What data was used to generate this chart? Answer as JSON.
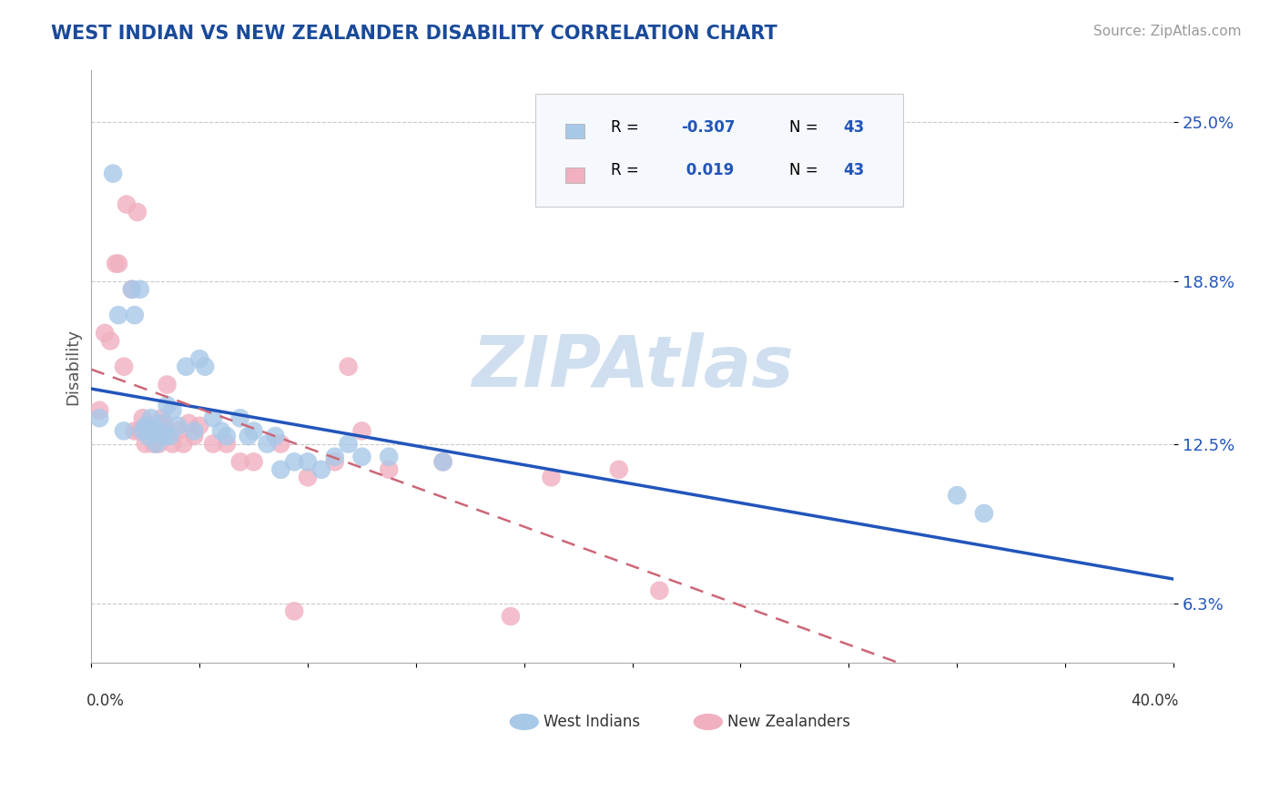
{
  "title": "WEST INDIAN VS NEW ZEALANDER DISABILITY CORRELATION CHART",
  "source": "Source: ZipAtlas.com",
  "ylabel": "Disability",
  "xlim": [
    0.0,
    0.4
  ],
  "ylim": [
    0.04,
    0.27
  ],
  "yticks": [
    0.063,
    0.125,
    0.188,
    0.25
  ],
  "ytick_labels": [
    "6.3%",
    "12.5%",
    "18.8%",
    "25.0%"
  ],
  "r_west_indian": -0.307,
  "r_new_zealander": 0.019,
  "n_west_indian": 43,
  "n_new_zealander": 43,
  "west_indian_color": "#a8c8e8",
  "new_zealander_color": "#f0b0c0",
  "west_indian_line_color": "#2255bb",
  "new_zealander_line_color": "#cc6677",
  "grid_color": "#bbbbbb",
  "title_color": "#1a4a9a",
  "watermark_color": "#d0dff0",
  "background_color": "#ffffff",
  "legend_box_color": "#f5f8fc",
  "west_indian_x": [
    0.003,
    0.008,
    0.01,
    0.012,
    0.015,
    0.016,
    0.018,
    0.019,
    0.02,
    0.021,
    0.022,
    0.023,
    0.024,
    0.025,
    0.026,
    0.027,
    0.028,
    0.029,
    0.03,
    0.032,
    0.035,
    0.038,
    0.04,
    0.042,
    0.045,
    0.048,
    0.05,
    0.055,
    0.058,
    0.06,
    0.065,
    0.068,
    0.07,
    0.075,
    0.08,
    0.085,
    0.09,
    0.095,
    0.1,
    0.11,
    0.13,
    0.32,
    0.33
  ],
  "west_indian_y": [
    0.135,
    0.23,
    0.175,
    0.13,
    0.185,
    0.175,
    0.185,
    0.13,
    0.132,
    0.128,
    0.135,
    0.13,
    0.125,
    0.13,
    0.133,
    0.128,
    0.14,
    0.128,
    0.138,
    0.132,
    0.155,
    0.13,
    0.158,
    0.155,
    0.135,
    0.13,
    0.128,
    0.135,
    0.128,
    0.13,
    0.125,
    0.128,
    0.115,
    0.118,
    0.118,
    0.115,
    0.12,
    0.125,
    0.12,
    0.12,
    0.118,
    0.105,
    0.098
  ],
  "new_zealander_x": [
    0.003,
    0.005,
    0.007,
    0.009,
    0.01,
    0.012,
    0.013,
    0.015,
    0.016,
    0.017,
    0.018,
    0.019,
    0.02,
    0.021,
    0.022,
    0.023,
    0.024,
    0.025,
    0.026,
    0.027,
    0.028,
    0.03,
    0.032,
    0.034,
    0.036,
    0.038,
    0.04,
    0.045,
    0.05,
    0.055,
    0.06,
    0.07,
    0.075,
    0.08,
    0.09,
    0.095,
    0.1,
    0.11,
    0.13,
    0.155,
    0.17,
    0.195,
    0.21
  ],
  "new_zealander_y": [
    0.138,
    0.168,
    0.165,
    0.195,
    0.195,
    0.155,
    0.218,
    0.185,
    0.13,
    0.215,
    0.13,
    0.135,
    0.125,
    0.132,
    0.13,
    0.125,
    0.128,
    0.125,
    0.135,
    0.133,
    0.148,
    0.125,
    0.13,
    0.125,
    0.133,
    0.128,
    0.132,
    0.125,
    0.125,
    0.118,
    0.118,
    0.125,
    0.06,
    0.112,
    0.118,
    0.155,
    0.13,
    0.115,
    0.118,
    0.058,
    0.112,
    0.115,
    0.068
  ]
}
